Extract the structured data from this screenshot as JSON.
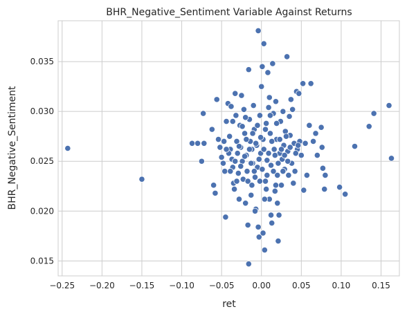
{
  "chart_data": {
    "type": "scatter",
    "title": "BHR_Negative_Sentiment Variable Against Returns",
    "xlabel": "ret",
    "ylabel": "BHR_Negative_Sentiment",
    "xlim": [
      -0.255,
      0.173
    ],
    "ylim": [
      0.0135,
      0.0391
    ],
    "xticks": [
      -0.25,
      -0.2,
      -0.15,
      -0.1,
      -0.05,
      0.0,
      0.05,
      0.1,
      0.15
    ],
    "xtick_labels": [
      "−0.25",
      "−0.20",
      "−0.15",
      "−0.10",
      "−0.05",
      "0.00",
      "0.05",
      "0.10",
      "0.15"
    ],
    "yticks": [
      0.015,
      0.02,
      0.025,
      0.03,
      0.035
    ],
    "ytick_labels": [
      "0.015",
      "0.020",
      "0.025",
      "0.030",
      "0.035"
    ],
    "grid": true,
    "marker_color": "#4c72b0",
    "marker_edge": "#ffffff",
    "points": [
      {
        "x": -0.243,
        "y": 0.0263
      },
      {
        "x": -0.15,
        "y": 0.0232
      },
      {
        "x": -0.087,
        "y": 0.0268
      },
      {
        "x": -0.08,
        "y": 0.0268
      },
      {
        "x": -0.075,
        "y": 0.025
      },
      {
        "x": -0.073,
        "y": 0.0298
      },
      {
        "x": -0.072,
        "y": 0.0268
      },
      {
        "x": -0.062,
        "y": 0.0282
      },
      {
        "x": -0.06,
        "y": 0.0226
      },
      {
        "x": -0.058,
        "y": 0.0218
      },
      {
        "x": -0.056,
        "y": 0.0312
      },
      {
        "x": -0.054,
        "y": 0.0272
      },
      {
        "x": -0.052,
        "y": 0.0264
      },
      {
        "x": -0.05,
        "y": 0.0254
      },
      {
        "x": -0.048,
        "y": 0.0248
      },
      {
        "x": -0.046,
        "y": 0.024
      },
      {
        "x": -0.045,
        "y": 0.0194
      },
      {
        "x": -0.044,
        "y": 0.029
      },
      {
        "x": -0.042,
        "y": 0.0308
      },
      {
        "x": -0.04,
        "y": 0.0275
      },
      {
        "x": -0.039,
        "y": 0.0262
      },
      {
        "x": -0.038,
        "y": 0.0305
      },
      {
        "x": -0.037,
        "y": 0.0252
      },
      {
        "x": -0.036,
        "y": 0.0244
      },
      {
        "x": -0.035,
        "y": 0.0228
      },
      {
        "x": -0.034,
        "y": 0.0222
      },
      {
        "x": -0.033,
        "y": 0.0318
      },
      {
        "x": -0.032,
        "y": 0.0296
      },
      {
        "x": -0.031,
        "y": 0.027
      },
      {
        "x": -0.03,
        "y": 0.0258
      },
      {
        "x": -0.029,
        "y": 0.0238
      },
      {
        "x": -0.028,
        "y": 0.0212
      },
      {
        "x": -0.027,
        "y": 0.0286
      },
      {
        "x": -0.026,
        "y": 0.0264
      },
      {
        "x": -0.025,
        "y": 0.0316
      },
      {
        "x": -0.024,
        "y": 0.025
      },
      {
        "x": -0.023,
        "y": 0.0232
      },
      {
        "x": -0.022,
        "y": 0.0302
      },
      {
        "x": -0.021,
        "y": 0.0278
      },
      {
        "x": -0.02,
        "y": 0.0208
      },
      {
        "x": -0.019,
        "y": 0.0256
      },
      {
        "x": -0.018,
        "y": 0.024
      },
      {
        "x": -0.017,
        "y": 0.0186
      },
      {
        "x": -0.016,
        "y": 0.0342
      },
      {
        "x": -0.015,
        "y": 0.0292
      },
      {
        "x": -0.014,
        "y": 0.027
      },
      {
        "x": -0.013,
        "y": 0.0216
      },
      {
        "x": -0.012,
        "y": 0.0262
      },
      {
        "x": -0.011,
        "y": 0.0248
      },
      {
        "x": -0.01,
        "y": 0.0306
      },
      {
        "x": -0.009,
        "y": 0.0282
      },
      {
        "x": -0.008,
        "y": 0.0234
      },
      {
        "x": -0.007,
        "y": 0.0202
      },
      {
        "x": -0.006,
        "y": 0.0266
      },
      {
        "x": -0.005,
        "y": 0.0244
      },
      {
        "x": -0.004,
        "y": 0.0381
      },
      {
        "x": -0.003,
        "y": 0.0174
      },
      {
        "x": -0.002,
        "y": 0.0296
      },
      {
        "x": -0.001,
        "y": 0.0258
      },
      {
        "x": 0.0,
        "y": 0.0325
      },
      {
        "x": 0.001,
        "y": 0.0345
      },
      {
        "x": 0.002,
        "y": 0.0272
      },
      {
        "x": 0.003,
        "y": 0.0368
      },
      {
        "x": 0.004,
        "y": 0.0161
      },
      {
        "x": 0.005,
        "y": 0.023
      },
      {
        "x": 0.006,
        "y": 0.0288
      },
      {
        "x": 0.007,
        "y": 0.0251
      },
      {
        "x": 0.008,
        "y": 0.0339
      },
      {
        "x": 0.009,
        "y": 0.0304
      },
      {
        "x": 0.01,
        "y": 0.0212
      },
      {
        "x": 0.011,
        "y": 0.0278
      },
      {
        "x": 0.012,
        "y": 0.0246
      },
      {
        "x": 0.013,
        "y": 0.0188
      },
      {
        "x": 0.014,
        "y": 0.0348
      },
      {
        "x": 0.015,
        "y": 0.0298
      },
      {
        "x": 0.016,
        "y": 0.0262
      },
      {
        "x": 0.017,
        "y": 0.022
      },
      {
        "x": 0.018,
        "y": 0.031
      },
      {
        "x": 0.019,
        "y": 0.0272
      },
      {
        "x": 0.02,
        "y": 0.0236
      },
      {
        "x": 0.021,
        "y": 0.017
      },
      {
        "x": 0.022,
        "y": 0.0196
      },
      {
        "x": 0.023,
        "y": 0.0258
      },
      {
        "x": 0.024,
        "y": 0.029
      },
      {
        "x": 0.025,
        "y": 0.0226
      },
      {
        "x": 0.026,
        "y": 0.0252
      },
      {
        "x": 0.027,
        "y": 0.03
      },
      {
        "x": 0.028,
        "y": 0.0266
      },
      {
        "x": 0.029,
        "y": 0.0242
      },
      {
        "x": 0.03,
        "y": 0.028
      },
      {
        "x": 0.032,
        "y": 0.0355
      },
      {
        "x": 0.033,
        "y": 0.026
      },
      {
        "x": 0.034,
        "y": 0.0236
      },
      {
        "x": 0.035,
        "y": 0.0295
      },
      {
        "x": 0.036,
        "y": 0.0276
      },
      {
        "x": 0.037,
        "y": 0.0312
      },
      {
        "x": 0.038,
        "y": 0.0248
      },
      {
        "x": 0.039,
        "y": 0.0302
      },
      {
        "x": 0.04,
        "y": 0.0228
      },
      {
        "x": 0.041,
        "y": 0.0268
      },
      {
        "x": 0.042,
        "y": 0.024
      },
      {
        "x": 0.044,
        "y": 0.032
      },
      {
        "x": 0.045,
        "y": 0.0262
      },
      {
        "x": 0.047,
        "y": 0.0318
      },
      {
        "x": 0.048,
        "y": 0.027
      },
      {
        "x": 0.05,
        "y": 0.0256
      },
      {
        "x": 0.052,
        "y": 0.0328
      },
      {
        "x": 0.053,
        "y": 0.0221
      },
      {
        "x": 0.055,
        "y": 0.0268
      },
      {
        "x": 0.057,
        "y": 0.0236
      },
      {
        "x": 0.06,
        "y": 0.0286
      },
      {
        "x": 0.062,
        "y": 0.0328
      },
      {
        "x": 0.065,
        "y": 0.027
      },
      {
        "x": 0.068,
        "y": 0.0278
      },
      {
        "x": 0.07,
        "y": 0.0256
      },
      {
        "x": 0.075,
        "y": 0.0284
      },
      {
        "x": 0.076,
        "y": 0.0264
      },
      {
        "x": 0.077,
        "y": 0.0243
      },
      {
        "x": 0.079,
        "y": 0.0222
      },
      {
        "x": 0.08,
        "y": 0.0236
      },
      {
        "x": 0.098,
        "y": 0.0224
      },
      {
        "x": 0.105,
        "y": 0.0217
      },
      {
        "x": 0.117,
        "y": 0.0265
      },
      {
        "x": 0.135,
        "y": 0.0285
      },
      {
        "x": 0.141,
        "y": 0.0298
      },
      {
        "x": 0.16,
        "y": 0.0306
      },
      {
        "x": 0.163,
        "y": 0.0253
      },
      {
        "x": -0.047,
        "y": 0.027
      },
      {
        "x": -0.041,
        "y": 0.0258
      },
      {
        "x": -0.039,
        "y": 0.024
      },
      {
        "x": -0.036,
        "y": 0.029
      },
      {
        "x": -0.033,
        "y": 0.025
      },
      {
        "x": -0.031,
        "y": 0.023
      },
      {
        "x": -0.028,
        "y": 0.0265
      },
      {
        "x": -0.026,
        "y": 0.0245
      },
      {
        "x": -0.024,
        "y": 0.0285
      },
      {
        "x": -0.021,
        "y": 0.0255
      },
      {
        "x": -0.019,
        "y": 0.0272
      },
      {
        "x": -0.017,
        "y": 0.023
      },
      {
        "x": -0.015,
        "y": 0.0262
      },
      {
        "x": -0.013,
        "y": 0.0248
      },
      {
        "x": -0.011,
        "y": 0.0278
      },
      {
        "x": -0.009,
        "y": 0.024
      },
      {
        "x": -0.007,
        "y": 0.0268
      },
      {
        "x": -0.005,
        "y": 0.0286
      },
      {
        "x": -0.003,
        "y": 0.0252
      },
      {
        "x": -0.001,
        "y": 0.0274
      },
      {
        "x": 0.001,
        "y": 0.0242
      },
      {
        "x": 0.003,
        "y": 0.0262
      },
      {
        "x": 0.005,
        "y": 0.0282
      },
      {
        "x": 0.007,
        "y": 0.0236
      },
      {
        "x": 0.009,
        "y": 0.0258
      },
      {
        "x": 0.011,
        "y": 0.0296
      },
      {
        "x": 0.013,
        "y": 0.027
      },
      {
        "x": 0.015,
        "y": 0.024
      },
      {
        "x": 0.017,
        "y": 0.0256
      },
      {
        "x": 0.019,
        "y": 0.0288
      },
      {
        "x": 0.021,
        "y": 0.0248
      },
      {
        "x": 0.023,
        "y": 0.0272
      },
      {
        "x": 0.025,
        "y": 0.0262
      },
      {
        "x": 0.027,
        "y": 0.024
      },
      {
        "x": 0.029,
        "y": 0.0256
      },
      {
        "x": 0.031,
        "y": 0.0275
      },
      {
        "x": 0.033,
        "y": 0.025
      },
      {
        "x": 0.036,
        "y": 0.0264
      },
      {
        "x": 0.043,
        "y": 0.0258
      },
      {
        "x": 0.046,
        "y": 0.0266
      },
      {
        "x": -0.044,
        "y": 0.0262
      },
      {
        "x": -0.002,
        "y": 0.023
      },
      {
        "x": 0.004,
        "y": 0.0212
      },
      {
        "x": -0.012,
        "y": 0.0226
      },
      {
        "x": 0.018,
        "y": 0.0226
      },
      {
        "x": -0.02,
        "y": 0.0294
      },
      {
        "x": 0.01,
        "y": 0.0314
      },
      {
        "x": 0.02,
        "y": 0.0208
      },
      {
        "x": -0.008,
        "y": 0.02
      },
      {
        "x": 0.012,
        "y": 0.0196
      },
      {
        "x": 0.002,
        "y": 0.0178
      },
      {
        "x": -0.004,
        "y": 0.0184
      },
      {
        "x": 0.006,
        "y": 0.0222
      },
      {
        "x": -0.016,
        "y": 0.0147
      }
    ]
  }
}
